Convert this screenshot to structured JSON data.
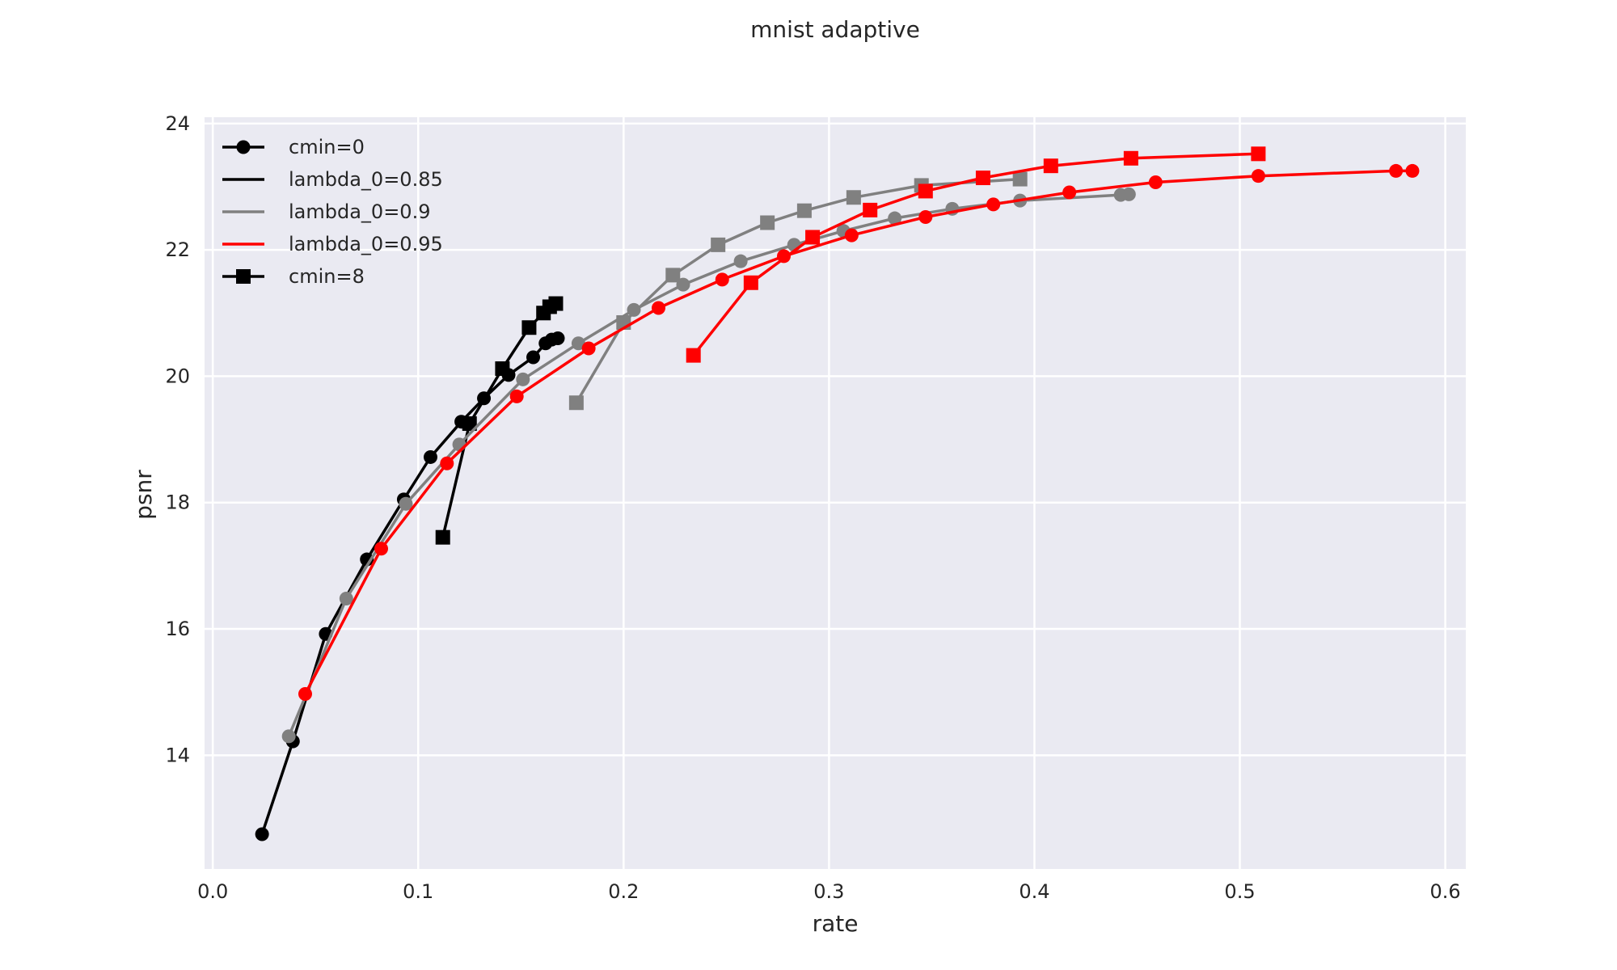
{
  "chart_data": {
    "type": "line",
    "title": "mnist adaptive",
    "xlabel": "rate",
    "ylabel": "psnr",
    "xlim": [
      -0.004,
      0.61
    ],
    "ylim": [
      12.2,
      24.1
    ],
    "xticks": [
      0.0,
      0.1,
      0.2,
      0.3,
      0.4,
      0.5,
      0.6
    ],
    "xtick_labels": [
      "0.0",
      "0.1",
      "0.2",
      "0.3",
      "0.4",
      "0.5",
      "0.6"
    ],
    "yticks": [
      14,
      16,
      18,
      20,
      22,
      24
    ],
    "ytick_labels": [
      "14",
      "16",
      "18",
      "20",
      "22",
      "24"
    ],
    "grid": true,
    "legend_position": "top-left",
    "legend": [
      {
        "label": "cmin=0",
        "color": "#000000",
        "marker": "circle"
      },
      {
        "label": "lambda_0=0.85",
        "color": "#000000",
        "marker": "none"
      },
      {
        "label": "lambda_0=0.9",
        "color": "#808080",
        "marker": "none"
      },
      {
        "label": "lambda_0=0.95",
        "color": "#ff0000",
        "marker": "none"
      },
      {
        "label": "cmin=8",
        "color": "#000000",
        "marker": "square"
      }
    ],
    "series": [
      {
        "lambda": "0.85",
        "cmin": "0",
        "color": "#000000",
        "marker": "circle",
        "x": [
          0.024,
          0.039,
          0.055,
          0.075,
          0.093,
          0.106,
          0.121,
          0.132,
          0.144,
          0.156,
          0.162,
          0.165,
          0.168
        ],
        "y": [
          12.75,
          14.22,
          15.92,
          17.1,
          18.05,
          18.72,
          19.28,
          19.65,
          20.02,
          20.3,
          20.52,
          20.58,
          20.6
        ]
      },
      {
        "lambda": "0.85",
        "cmin": "8",
        "color": "#000000",
        "marker": "square",
        "x": [
          0.112,
          0.125,
          0.141,
          0.154,
          0.161,
          0.164,
          0.167
        ],
        "y": [
          17.45,
          19.25,
          20.12,
          20.77,
          21.0,
          21.1,
          21.15
        ]
      },
      {
        "lambda": "0.9",
        "cmin": "0",
        "color": "#808080",
        "marker": "circle",
        "x": [
          0.037,
          0.065,
          0.094,
          0.12,
          0.151,
          0.178,
          0.205,
          0.229,
          0.257,
          0.283,
          0.307,
          0.332,
          0.36,
          0.393,
          0.442,
          0.446
        ],
        "y": [
          14.3,
          16.48,
          17.98,
          18.92,
          19.95,
          20.52,
          21.05,
          21.45,
          21.82,
          22.08,
          22.3,
          22.5,
          22.65,
          22.78,
          22.87,
          22.88
        ]
      },
      {
        "lambda": "0.9",
        "cmin": "8",
        "color": "#808080",
        "marker": "square",
        "x": [
          0.177,
          0.2,
          0.224,
          0.246,
          0.27,
          0.288,
          0.312,
          0.345,
          0.393
        ],
        "y": [
          19.58,
          20.85,
          21.6,
          22.08,
          22.43,
          22.62,
          22.83,
          23.02,
          23.12
        ]
      },
      {
        "lambda": "0.95",
        "cmin": "0",
        "color": "#ff0000",
        "marker": "circle",
        "x": [
          0.045,
          0.082,
          0.114,
          0.148,
          0.183,
          0.217,
          0.248,
          0.278,
          0.311,
          0.347,
          0.38,
          0.417,
          0.459,
          0.509,
          0.576,
          0.584
        ],
        "y": [
          14.97,
          17.27,
          18.62,
          19.68,
          20.44,
          21.08,
          21.53,
          21.9,
          22.23,
          22.52,
          22.72,
          22.91,
          23.07,
          23.17,
          23.25,
          23.25
        ]
      },
      {
        "lambda": "0.95",
        "cmin": "8",
        "color": "#ff0000",
        "marker": "square",
        "x": [
          0.234,
          0.262,
          0.292,
          0.32,
          0.347,
          0.375,
          0.408,
          0.447,
          0.509
        ],
        "y": [
          20.33,
          21.48,
          22.2,
          22.63,
          22.93,
          23.14,
          23.33,
          23.45,
          23.52
        ]
      }
    ]
  }
}
